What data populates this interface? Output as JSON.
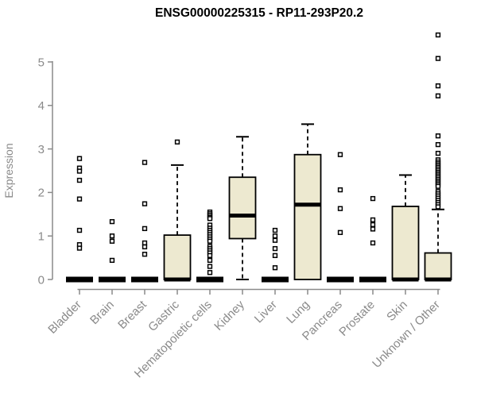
{
  "title": "ENSG00000225315 - RP11-293P20.2",
  "colors": {
    "background": "#ffffff",
    "box_fill": "#ede9d0",
    "box_stroke": "#000000",
    "median": "#000000",
    "whisker": "#000000",
    "outlier_stroke": "#000000",
    "outlier_fill": "#ffffff",
    "axis": "#8a8a8a",
    "tick_label": "#8a8a8a",
    "title_color": "#000000"
  },
  "chart_data": {
    "type": "boxplot",
    "title": "ENSG00000225315 - RP11-293P20.2",
    "xlabel": "",
    "ylabel": "Expression",
    "ylim": [
      0,
      5.7
    ],
    "yticks": [
      0,
      1,
      2,
      3,
      4,
      5
    ],
    "grid": false,
    "legend": "none",
    "categories": [
      "Bladder",
      "Brain",
      "Breast",
      "Gastric",
      "Hematopoietic cells",
      "Kidney",
      "Liver",
      "Lung",
      "Pancreas",
      "Prostate",
      "Skin",
      "Unknown / Other"
    ],
    "boxes": [
      {
        "name": "Bladder",
        "q1": 0,
        "median": 0,
        "q3": 0,
        "whisker_low": 0,
        "whisker_high": 0,
        "outliers": [
          2.78,
          2.56,
          2.49,
          2.28,
          1.85,
          1.13,
          0.8,
          0.72
        ]
      },
      {
        "name": "Brain",
        "q1": 0,
        "median": 0,
        "q3": 0,
        "whisker_low": 0,
        "whisker_high": 0,
        "outliers": [
          1.33,
          1.0,
          0.88,
          0.44
        ]
      },
      {
        "name": "Breast",
        "q1": 0,
        "median": 0,
        "q3": 0,
        "whisker_low": 0,
        "whisker_high": 0,
        "outliers": [
          2.69,
          1.74,
          1.17,
          0.84,
          0.75,
          0.58
        ]
      },
      {
        "name": "Gastric",
        "q1": 0,
        "median": 0,
        "q3": 1.02,
        "whisker_low": 0,
        "whisker_high": 2.63,
        "outliers": [
          3.16
        ]
      },
      {
        "name": "Hematopoietic cells",
        "q1": 0,
        "median": 0,
        "q3": 0,
        "whisker_low": 0,
        "whisker_high": 0,
        "outliers": [
          1.55,
          1.51,
          1.47,
          1.43,
          1.4,
          1.25,
          1.18,
          1.13,
          1.08,
          1.03,
          0.98,
          0.93,
          0.88,
          0.76,
          0.71,
          0.66,
          0.61,
          0.55,
          0.44,
          0.3,
          0.16
        ]
      },
      {
        "name": "Kidney",
        "q1": 0.94,
        "median": 1.47,
        "q3": 2.35,
        "whisker_low": 0,
        "whisker_high": 3.28,
        "outliers": []
      },
      {
        "name": "Liver",
        "q1": 0,
        "median": 0,
        "q3": 0,
        "whisker_low": 0,
        "whisker_high": 0,
        "outliers": [
          1.13,
          1.0,
          0.9,
          0.71,
          0.55,
          0.27
        ]
      },
      {
        "name": "Lung",
        "q1": 0,
        "median": 1.72,
        "q3": 2.87,
        "whisker_low": 0,
        "whisker_high": 3.57,
        "outliers": []
      },
      {
        "name": "Pancreas",
        "q1": 0,
        "median": 0,
        "q3": 0,
        "whisker_low": 0,
        "whisker_high": 0,
        "outliers": [
          2.87,
          2.06,
          1.63,
          1.08
        ]
      },
      {
        "name": "Prostate",
        "q1": 0,
        "median": 0,
        "q3": 0,
        "whisker_low": 0,
        "whisker_high": 0,
        "outliers": [
          1.86,
          1.37,
          1.26,
          1.16,
          0.84
        ]
      },
      {
        "name": "Skin",
        "q1": 0,
        "median": 0,
        "q3": 1.68,
        "whisker_low": 0,
        "whisker_high": 2.4,
        "outliers": []
      },
      {
        "name": "Unknown / Other",
        "q1": 0,
        "median": 0,
        "q3": 0.61,
        "whisker_low": 0,
        "whisker_high": 1.61,
        "outliers": [
          5.62,
          5.08,
          4.45,
          4.22,
          3.3,
          3.1,
          2.9,
          2.75,
          2.7,
          2.66,
          2.62,
          2.58,
          2.54,
          2.5,
          2.46,
          2.42,
          2.38,
          2.34,
          2.3,
          2.26,
          2.22,
          2.18,
          2.14,
          2.02,
          1.97,
          1.92,
          1.87,
          1.82,
          1.77,
          1.72,
          1.67
        ]
      }
    ]
  }
}
